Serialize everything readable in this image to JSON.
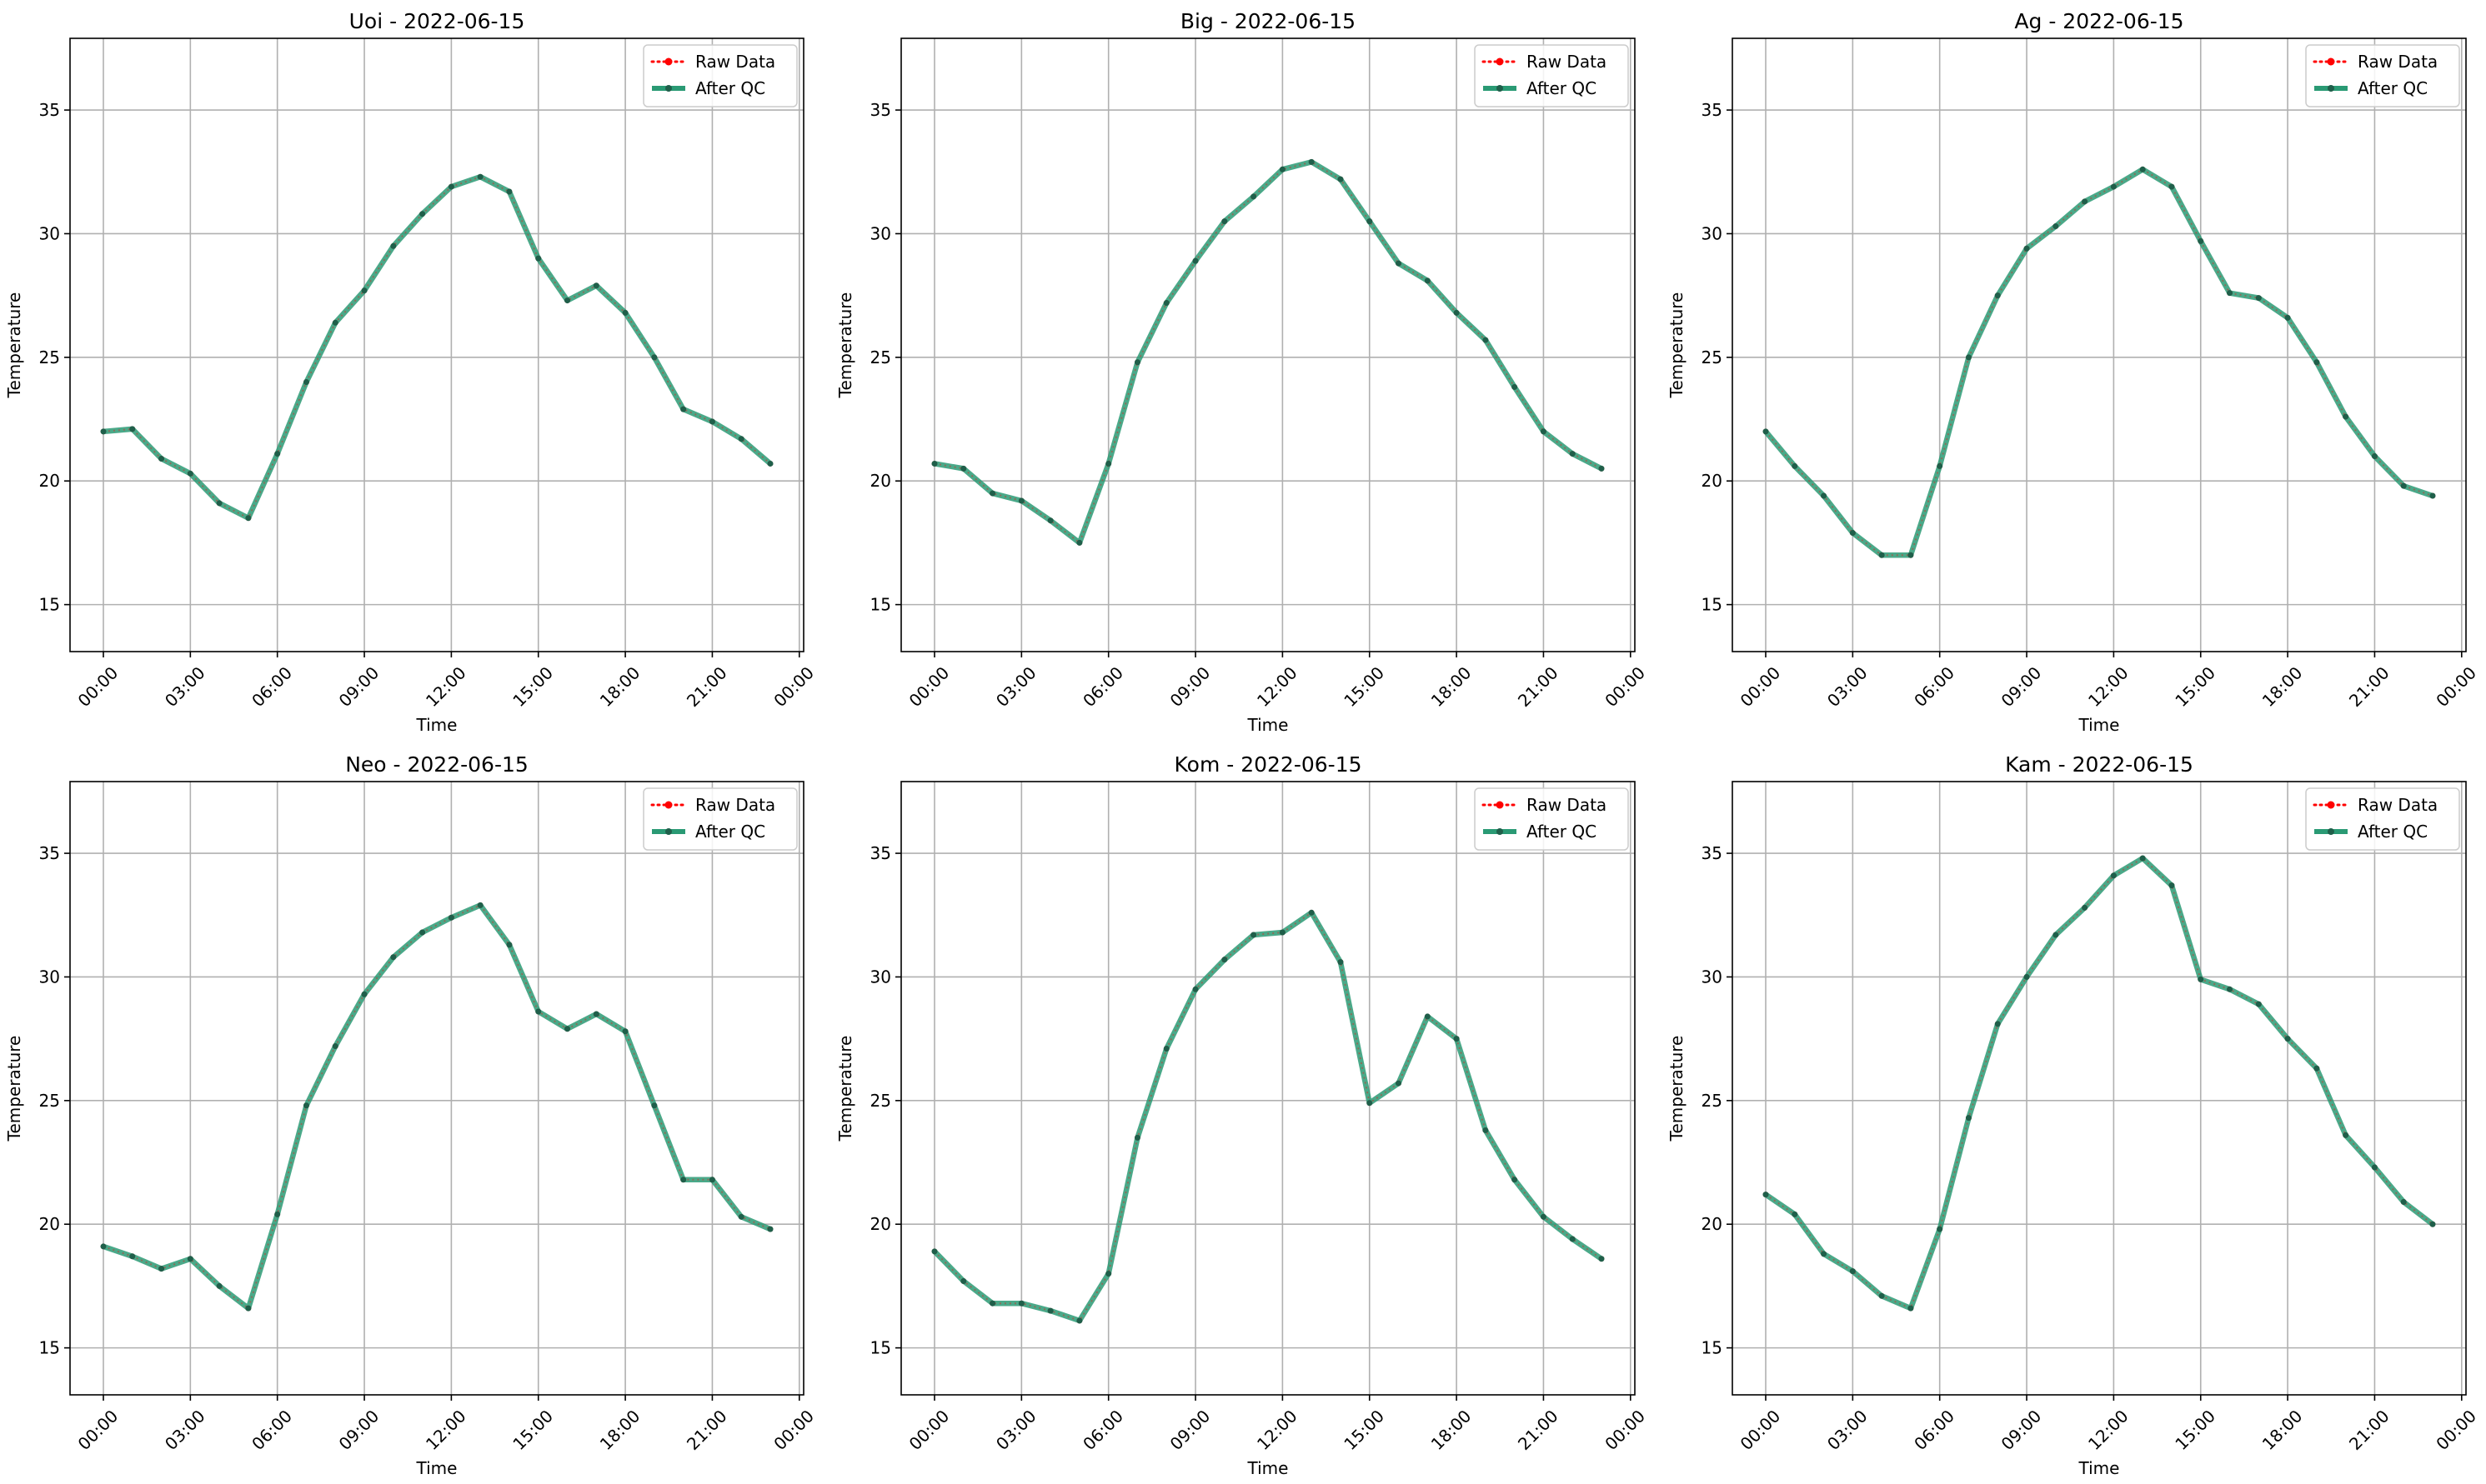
{
  "figure": {
    "background": "#ffffff"
  },
  "colors": {
    "raw": "#ff0000",
    "qc": "#2a9a74",
    "grid": "#b0b0b0",
    "axis": "#000000",
    "marker_qc": "#1f5f4a"
  },
  "legend": {
    "placement": "upper right",
    "raw_label": "Raw Data",
    "qc_label": "After QC"
  },
  "chart_data": [
    {
      "type": "line",
      "title": "Uoi - 2022-06-15",
      "xlabel": "Time",
      "ylabel": "Temperature",
      "xlim_hours": [
        -1.15,
        24.15
      ],
      "ylim": [
        13.1,
        37.9
      ],
      "xticks": [
        "00:00",
        "03:00",
        "06:00",
        "09:00",
        "12:00",
        "15:00",
        "18:00",
        "21:00",
        "00:00"
      ],
      "yticks": [
        15,
        20,
        25,
        30,
        35
      ],
      "grid": true,
      "x": [
        "00:00",
        "01:00",
        "02:00",
        "03:00",
        "04:00",
        "05:00",
        "06:00",
        "07:00",
        "08:00",
        "09:00",
        "10:00",
        "11:00",
        "12:00",
        "13:00",
        "14:00",
        "15:00",
        "16:00",
        "17:00",
        "18:00",
        "19:00",
        "20:00",
        "21:00",
        "22:00",
        "23:00"
      ],
      "series": [
        {
          "name": "Raw Data",
          "values": [
            22.0,
            22.1,
            20.9,
            20.3,
            19.1,
            18.5,
            21.1,
            24.0,
            26.4,
            27.7,
            29.5,
            30.8,
            31.9,
            32.3,
            31.7,
            29.0,
            27.3,
            27.9,
            26.8,
            25.0,
            22.9,
            22.4,
            21.7,
            20.7
          ]
        },
        {
          "name": "After QC",
          "values": [
            22.0,
            22.1,
            20.9,
            20.3,
            19.1,
            18.5,
            21.1,
            24.0,
            26.4,
            27.7,
            29.5,
            30.8,
            31.9,
            32.3,
            31.7,
            29.0,
            27.3,
            27.9,
            26.8,
            25.0,
            22.9,
            22.4,
            21.7,
            20.7
          ]
        }
      ]
    },
    {
      "type": "line",
      "title": "Big - 2022-06-15",
      "xlabel": "Time",
      "ylabel": "Temperature",
      "xlim_hours": [
        -1.15,
        24.15
      ],
      "ylim": [
        13.1,
        37.9
      ],
      "xticks": [
        "00:00",
        "03:00",
        "06:00",
        "09:00",
        "12:00",
        "15:00",
        "18:00",
        "21:00",
        "00:00"
      ],
      "yticks": [
        15,
        20,
        25,
        30,
        35
      ],
      "grid": true,
      "x": [
        "00:00",
        "01:00",
        "02:00",
        "03:00",
        "04:00",
        "05:00",
        "06:00",
        "07:00",
        "08:00",
        "09:00",
        "10:00",
        "11:00",
        "12:00",
        "13:00",
        "14:00",
        "15:00",
        "16:00",
        "17:00",
        "18:00",
        "19:00",
        "20:00",
        "21:00",
        "22:00",
        "23:00"
      ],
      "series": [
        {
          "name": "Raw Data",
          "values": [
            20.7,
            20.5,
            19.5,
            19.2,
            18.4,
            17.5,
            20.7,
            24.8,
            27.2,
            28.9,
            30.5,
            31.5,
            32.6,
            32.9,
            32.2,
            30.5,
            28.8,
            28.1,
            26.8,
            25.7,
            23.8,
            22.0,
            21.1,
            20.5
          ]
        },
        {
          "name": "After QC",
          "values": [
            20.7,
            20.5,
            19.5,
            19.2,
            18.4,
            17.5,
            20.7,
            24.8,
            27.2,
            28.9,
            30.5,
            31.5,
            32.6,
            32.9,
            32.2,
            30.5,
            28.8,
            28.1,
            26.8,
            25.7,
            23.8,
            22.0,
            21.1,
            20.5
          ]
        }
      ]
    },
    {
      "type": "line",
      "title": "Ag - 2022-06-15",
      "xlabel": "Time",
      "ylabel": "Temperature",
      "xlim_hours": [
        -1.15,
        24.15
      ],
      "ylim": [
        13.1,
        37.9
      ],
      "xticks": [
        "00:00",
        "03:00",
        "06:00",
        "09:00",
        "12:00",
        "15:00",
        "18:00",
        "21:00",
        "00:00"
      ],
      "yticks": [
        15,
        20,
        25,
        30,
        35
      ],
      "grid": true,
      "x": [
        "00:00",
        "01:00",
        "02:00",
        "03:00",
        "04:00",
        "05:00",
        "06:00",
        "07:00",
        "08:00",
        "09:00",
        "10:00",
        "11:00",
        "12:00",
        "13:00",
        "14:00",
        "15:00",
        "16:00",
        "17:00",
        "18:00",
        "19:00",
        "20:00",
        "21:00",
        "22:00",
        "23:00"
      ],
      "series": [
        {
          "name": "Raw Data",
          "values": [
            22.0,
            20.6,
            19.4,
            17.9,
            17.0,
            17.0,
            20.6,
            25.0,
            27.5,
            29.4,
            30.3,
            31.3,
            31.9,
            32.6,
            31.9,
            29.7,
            27.6,
            27.4,
            26.6,
            24.8,
            22.6,
            21.0,
            19.8,
            19.4
          ]
        },
        {
          "name": "After QC",
          "values": [
            22.0,
            20.6,
            19.4,
            17.9,
            17.0,
            17.0,
            20.6,
            25.0,
            27.5,
            29.4,
            30.3,
            31.3,
            31.9,
            32.6,
            31.9,
            29.7,
            27.6,
            27.4,
            26.6,
            24.8,
            22.6,
            21.0,
            19.8,
            19.4
          ]
        }
      ]
    },
    {
      "type": "line",
      "title": "Neo - 2022-06-15",
      "xlabel": "Time",
      "ylabel": "Temperature",
      "xlim_hours": [
        -1.15,
        24.15
      ],
      "ylim": [
        13.1,
        37.9
      ],
      "xticks": [
        "00:00",
        "03:00",
        "06:00",
        "09:00",
        "12:00",
        "15:00",
        "18:00",
        "21:00",
        "00:00"
      ],
      "yticks": [
        15,
        20,
        25,
        30,
        35
      ],
      "grid": true,
      "x": [
        "00:00",
        "01:00",
        "02:00",
        "03:00",
        "04:00",
        "05:00",
        "06:00",
        "07:00",
        "08:00",
        "09:00",
        "10:00",
        "11:00",
        "12:00",
        "13:00",
        "14:00",
        "15:00",
        "16:00",
        "17:00",
        "18:00",
        "19:00",
        "20:00",
        "21:00",
        "22:00",
        "23:00"
      ],
      "series": [
        {
          "name": "Raw Data",
          "values": [
            19.1,
            18.7,
            18.2,
            18.6,
            17.5,
            16.6,
            20.4,
            24.8,
            27.2,
            29.3,
            30.8,
            31.8,
            32.4,
            32.9,
            31.3,
            28.6,
            27.9,
            28.5,
            27.8,
            24.8,
            21.8,
            21.8,
            20.3,
            19.8
          ]
        },
        {
          "name": "After QC",
          "values": [
            19.1,
            18.7,
            18.2,
            18.6,
            17.5,
            16.6,
            20.4,
            24.8,
            27.2,
            29.3,
            30.8,
            31.8,
            32.4,
            32.9,
            31.3,
            28.6,
            27.9,
            28.5,
            27.8,
            24.8,
            21.8,
            21.8,
            20.3,
            19.8
          ]
        }
      ]
    },
    {
      "type": "line",
      "title": "Kom - 2022-06-15",
      "xlabel": "Time",
      "ylabel": "Temperature",
      "xlim_hours": [
        -1.15,
        24.15
      ],
      "ylim": [
        13.1,
        37.9
      ],
      "xticks": [
        "00:00",
        "03:00",
        "06:00",
        "09:00",
        "12:00",
        "15:00",
        "18:00",
        "21:00",
        "00:00"
      ],
      "yticks": [
        15,
        20,
        25,
        30,
        35
      ],
      "grid": true,
      "x": [
        "00:00",
        "01:00",
        "02:00",
        "03:00",
        "04:00",
        "05:00",
        "06:00",
        "07:00",
        "08:00",
        "09:00",
        "10:00",
        "11:00",
        "12:00",
        "13:00",
        "14:00",
        "15:00",
        "16:00",
        "17:00",
        "18:00",
        "19:00",
        "20:00",
        "21:00",
        "22:00",
        "23:00"
      ],
      "series": [
        {
          "name": "Raw Data",
          "values": [
            18.9,
            17.7,
            16.8,
            16.8,
            16.5,
            16.1,
            18.0,
            23.5,
            27.1,
            29.5,
            30.7,
            31.7,
            31.8,
            32.6,
            30.6,
            24.9,
            25.7,
            28.4,
            27.5,
            23.8,
            21.8,
            20.3,
            19.4,
            18.6
          ]
        },
        {
          "name": "After QC",
          "values": [
            18.9,
            17.7,
            16.8,
            16.8,
            16.5,
            16.1,
            18.0,
            23.5,
            27.1,
            29.5,
            30.7,
            31.7,
            31.8,
            32.6,
            30.6,
            24.9,
            25.7,
            28.4,
            27.5,
            23.8,
            21.8,
            20.3,
            19.4,
            18.6
          ]
        }
      ]
    },
    {
      "type": "line",
      "title": "Kam - 2022-06-15",
      "xlabel": "Time",
      "ylabel": "Temperature",
      "xlim_hours": [
        -1.15,
        24.15
      ],
      "ylim": [
        13.1,
        37.9
      ],
      "xticks": [
        "00:00",
        "03:00",
        "06:00",
        "09:00",
        "12:00",
        "15:00",
        "18:00",
        "21:00",
        "00:00"
      ],
      "yticks": [
        15,
        20,
        25,
        30,
        35
      ],
      "grid": true,
      "x": [
        "00:00",
        "01:00",
        "02:00",
        "03:00",
        "04:00",
        "05:00",
        "06:00",
        "07:00",
        "08:00",
        "09:00",
        "10:00",
        "11:00",
        "12:00",
        "13:00",
        "14:00",
        "15:00",
        "16:00",
        "17:00",
        "18:00",
        "19:00",
        "20:00",
        "21:00",
        "22:00",
        "23:00"
      ],
      "series": [
        {
          "name": "Raw Data",
          "values": [
            21.2,
            20.4,
            18.8,
            18.1,
            17.1,
            16.6,
            19.8,
            24.3,
            28.1,
            30.0,
            31.7,
            32.8,
            34.1,
            34.8,
            33.7,
            29.9,
            29.5,
            28.9,
            27.5,
            26.3,
            23.6,
            22.3,
            20.9,
            20.0
          ]
        },
        {
          "name": "After QC",
          "values": [
            21.2,
            20.4,
            18.8,
            18.1,
            17.1,
            16.6,
            19.8,
            24.3,
            28.1,
            30.0,
            31.7,
            32.8,
            34.1,
            34.8,
            33.7,
            29.9,
            29.5,
            28.9,
            27.5,
            26.3,
            23.6,
            22.3,
            20.9,
            20.0
          ]
        }
      ]
    }
  ]
}
